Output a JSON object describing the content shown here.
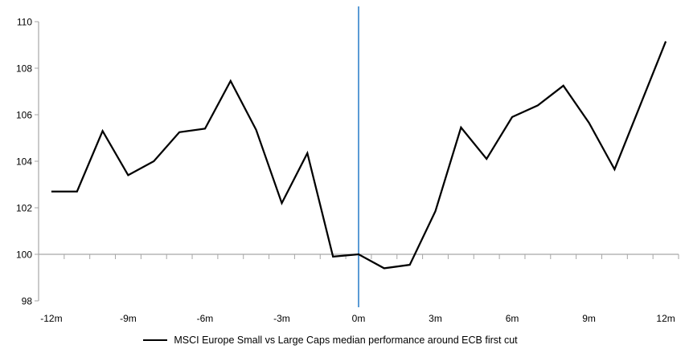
{
  "chart_data": {
    "type": "line",
    "title": "",
    "categories": [
      "-12m",
      "-11m",
      "-10m",
      "-9m",
      "-8m",
      "-7m",
      "-6m",
      "-5m",
      "-4m",
      "-3m",
      "-2m",
      "-1m",
      "0m",
      "1m",
      "2m",
      "3m",
      "4m",
      "5m",
      "6m",
      "7m",
      "8m",
      "9m",
      "10m",
      "11m",
      "12m"
    ],
    "series": [
      {
        "name": "MSCI Europe Small vs Large Caps median performance around ECB first cut",
        "color": "#000000",
        "values": [
          102.7,
          102.7,
          105.3,
          103.4,
          104.0,
          105.25,
          105.4,
          107.45,
          105.35,
          102.2,
          104.35,
          99.9,
          100.0,
          99.4,
          99.55,
          101.85,
          105.45,
          104.1,
          105.9,
          106.4,
          107.25,
          105.65,
          103.65,
          106.4,
          109.15
        ]
      }
    ],
    "x_axis": {
      "tick_labels": [
        "-12m",
        "-9m",
        "-6m",
        "-3m",
        "0m",
        "3m",
        "6m",
        "9m",
        "12m"
      ],
      "label_every": 3
    },
    "y_axis": {
      "ticks": [
        98,
        100,
        102,
        104,
        106,
        108,
        110
      ],
      "min": 98,
      "max": 110
    },
    "reference_lines": {
      "vertical_at_category": "0m",
      "vertical_color": "#5B9BD5",
      "horizontal_at_value": 100
    },
    "axis_color": "#A6A6A6",
    "grid": false,
    "legend_position": "bottom-center"
  },
  "legend": {
    "series_label": "MSCI Europe Small vs Large Caps median performance around ECB first cut"
  }
}
